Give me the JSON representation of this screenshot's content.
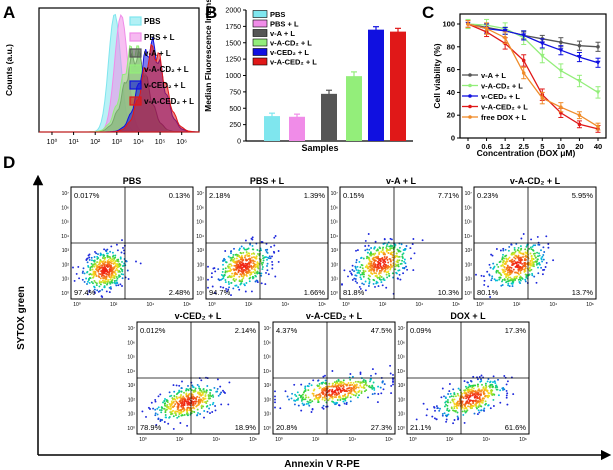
{
  "panels": {
    "a": "A",
    "b": "B",
    "c": "C",
    "d": "D"
  },
  "colors": {
    "PBS": "#7fe6ee",
    "PBS + L": "#f08ce8",
    "v-A + L": "#555555",
    "v-A-CD2 + L": "#93ee7a",
    "v-CED2 + L": "#1010e0",
    "v-A-CED2 + L": "#e01818",
    "free DOX + L": "#f08c2a"
  },
  "chart_data": [
    {
      "type": "histogram",
      "panel": "A",
      "ylabel": "Counts (a.u.)",
      "x_ticks": [
        "10⁰",
        "10¹",
        "10²",
        "10³",
        "10⁴",
        "10⁵",
        "10⁶"
      ],
      "x_tick_exponents": [
        0,
        1,
        2,
        3,
        4,
        5,
        6
      ],
      "xlim_log10": [
        -0.6,
        6.8
      ],
      "series": [
        {
          "name": "PBS",
          "label": "PBS",
          "peak_log10": 2.9,
          "width": 0.28,
          "height": 0.97
        },
        {
          "name": "PBS + L",
          "label": "PBS + L",
          "peak_log10": 3.2,
          "width": 0.3,
          "height": 0.96
        },
        {
          "name": "v-A + L",
          "label": "v-A + L",
          "peak_log10": 3.9,
          "width": 0.55,
          "height": 0.62
        },
        {
          "name": "v-A-CD2 + L",
          "label": "v-A-CD₂ + L",
          "peak_log10": 3.8,
          "width": 0.55,
          "height": 0.68
        },
        {
          "name": "v-CED2 + L",
          "label": "v-CED₂ + L",
          "peak_log10": 4.6,
          "width": 0.55,
          "height": 0.7
        },
        {
          "name": "v-A-CED2 + L",
          "label": "v-A-CED₂ + L",
          "peak_log10": 4.7,
          "width": 0.55,
          "height": 0.66
        }
      ]
    },
    {
      "type": "bar",
      "panel": "B",
      "ylabel": "Median Fluorescence Intensity",
      "xlabel": "Samples",
      "ylim": [
        0,
        2000
      ],
      "yticks": [
        0,
        250,
        500,
        750,
        1000,
        1250,
        1500,
        1750,
        2000
      ],
      "categories": [
        "PBS",
        "PBS + L",
        "v-A + L",
        "v-A-CD2 + L",
        "v-CED2 + L",
        "v-A-CED2 + L"
      ],
      "legend": [
        "PBS",
        "PBS + L",
        "v-A + L",
        "v-A-CD₂ + L",
        "v-CED₂ + L",
        "v-A-CED₂ + L"
      ],
      "values": [
        380,
        370,
        720,
        990,
        1700,
        1670
      ],
      "errors": [
        45,
        40,
        55,
        65,
        45,
        50
      ]
    },
    {
      "type": "line",
      "panel": "C",
      "ylabel": "Cell viability (%)",
      "xlabel": "Concentration (DOX μM)",
      "x": [
        "0",
        "0.6",
        "1.2",
        "2.5",
        "5",
        "10",
        "20",
        "40"
      ],
      "ylim": [
        0,
        100
      ],
      "yticks": [
        0,
        20,
        40,
        60,
        80,
        100
      ],
      "series": [
        {
          "name": "v-A + L",
          "label": "v-A + L",
          "values": [
            100,
            97,
            94,
            90,
            87,
            84,
            81,
            80
          ],
          "errors": [
            3,
            3,
            3,
            3,
            3,
            4,
            4,
            4
          ]
        },
        {
          "name": "v-A-CD2 + L",
          "label": "v-A-CD₂ + L",
          "values": [
            100,
            99,
            96,
            88,
            72,
            59,
            50,
            40
          ],
          "errors": [
            4,
            5,
            5,
            6,
            6,
            6,
            5,
            5
          ]
        },
        {
          "name": "v-CED2 + L",
          "label": "v-CED₂ + L",
          "values": [
            100,
            96,
            94,
            90,
            83,
            77,
            71,
            66
          ],
          "errors": [
            3,
            4,
            3,
            4,
            4,
            4,
            4,
            4
          ]
        },
        {
          "name": "v-A-CED2 + L",
          "label": "v-A-CED₂ + L",
          "values": [
            100,
            93,
            83,
            68,
            38,
            22,
            12,
            8
          ],
          "errors": [
            3,
            4,
            5,
            5,
            5,
            4,
            3,
            3
          ]
        },
        {
          "name": "free DOX + L",
          "label": "free DOX + L",
          "values": [
            100,
            96,
            88,
            57,
            35,
            27,
            20,
            10
          ],
          "errors": [
            3,
            5,
            5,
            5,
            5,
            4,
            3,
            3
          ]
        }
      ]
    },
    {
      "type": "scatter",
      "panel": "D",
      "xlabel": "Annexin V  R-PE",
      "ylabel": "SYTOX green",
      "x_ticks": [
        "10⁰",
        "10²",
        "10⁴",
        "10⁶"
      ],
      "y_ticks": [
        "10⁷",
        "10⁶",
        "10⁵",
        "10⁴",
        "10³",
        "10²",
        "10¹",
        "10⁰"
      ],
      "plots": [
        {
          "title": "PBS",
          "quadrants": {
            "ul": "0.017%",
            "ur": "0.13%",
            "ll": "97.4%",
            "lr": "2.48%"
          },
          "cloud": {
            "cx": 1.7,
            "cy": 1.7,
            "sx": 0.6,
            "sy": 0.65,
            "tilt": 0.4
          }
        },
        {
          "title": "PBS + L",
          "quadrants": {
            "ul": "2.18%",
            "ur": "1.39%",
            "ll": "94.7%",
            "lr": "1.66%"
          },
          "cloud": {
            "cx": 1.9,
            "cy": 2.0,
            "sx": 0.7,
            "sy": 0.7,
            "tilt": 0.6
          }
        },
        {
          "title": "v-A + L",
          "quadrants": {
            "ul": "0.15%",
            "ur": "7.71%",
            "ll": "81.8%",
            "lr": "10.3%"
          },
          "cloud": {
            "cx": 2.1,
            "cy": 2.2,
            "sx": 0.75,
            "sy": 0.7,
            "tilt": 0.6
          }
        },
        {
          "title": "v-A-CD₂ + L",
          "quadrants": {
            "ul": "0.23%",
            "ur": "5.95%",
            "ll": "80.1%",
            "lr": "13.7%"
          },
          "cloud": {
            "cx": 2.2,
            "cy": 2.1,
            "sx": 0.75,
            "sy": 0.7,
            "tilt": 0.6
          }
        },
        {
          "title": "v-CED₂ + L",
          "quadrants": {
            "ul": "0.012%",
            "ur": "2.14%",
            "ll": "78.9%",
            "lr": "18.9%"
          },
          "cloud": {
            "cx": 2.6,
            "cy": 1.9,
            "sx": 0.9,
            "sy": 0.55,
            "tilt": 0.5
          }
        },
        {
          "title": "v-A-CED₂ + L",
          "quadrants": {
            "ul": "4.37%",
            "ur": "47.5%",
            "ll": "20.8%",
            "lr": "27.3%"
          },
          "cloud": {
            "cx": 3.3,
            "cy": 2.7,
            "sx": 1.3,
            "sy": 0.45,
            "tilt": 0.3
          }
        },
        {
          "title": "DOX + L",
          "quadrants": {
            "ul": "0.09%",
            "ur": "17.3%",
            "ll": "21.1%",
            "lr": "61.6%"
          },
          "cloud": {
            "cx": 3.4,
            "cy": 2.2,
            "sx": 0.9,
            "sy": 0.55,
            "tilt": 0.6
          }
        }
      ]
    }
  ]
}
